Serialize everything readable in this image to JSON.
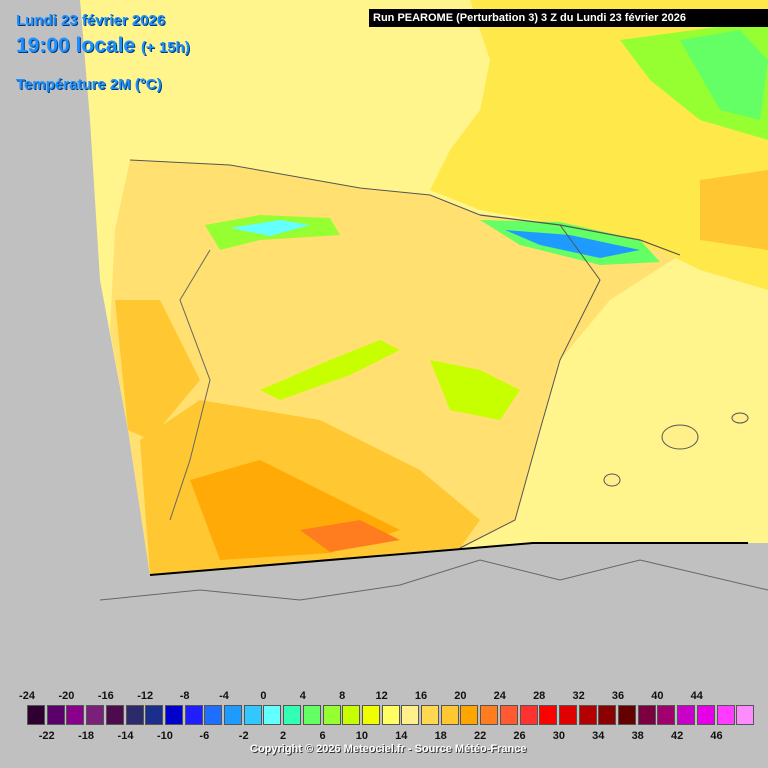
{
  "header": {
    "date": "Lundi 23 février 2026",
    "time": "19:00 locale",
    "offset": "(+ 15h)",
    "parameter": "Température 2M (°C)",
    "run": "Run PEAROME (Perturbation 3) 3 Z du Lundi 23 février 2026"
  },
  "legend": {
    "top_labels": [
      "-24",
      "-20",
      "-16",
      "-12",
      "-8",
      "-4",
      "0",
      "4",
      "8",
      "12",
      "16",
      "20",
      "24",
      "28",
      "32",
      "36",
      "40",
      "44"
    ],
    "bottom_labels": [
      "-22",
      "-18",
      "-14",
      "-10",
      "-6",
      "-2",
      "2",
      "6",
      "10",
      "14",
      "18",
      "22",
      "26",
      "30",
      "34",
      "38",
      "42",
      "46"
    ],
    "colors": [
      "#2d0030",
      "#5a006a",
      "#8b008b",
      "#7a1f7a",
      "#4d0a4d",
      "#2b2b6b",
      "#1a2e8c",
      "#0000cd",
      "#1e1eff",
      "#1e6eff",
      "#1e9bff",
      "#32c8ff",
      "#64ffff",
      "#32ffb4",
      "#64ff64",
      "#96ff32",
      "#c8ff00",
      "#f0ff00",
      "#ffff64",
      "#fff08c",
      "#ffd850",
      "#ffc832",
      "#ffa500",
      "#ff7d1e",
      "#ff5a32",
      "#ff3232",
      "#ff0000",
      "#e10000",
      "#b40000",
      "#8c0000",
      "#640000",
      "#7a0040",
      "#a0006e",
      "#c800c8",
      "#e600e6",
      "#ff3cff",
      "#ff8cff"
    ]
  },
  "copyright": "Copyright © 2026 Meteociel.fr - Source Météo-France",
  "colors": {
    "sea": "#fff58c",
    "land_mid": "#ffdc50",
    "warm": "#ffa500",
    "cold": "#64ffff",
    "outside": "#c0c0c0"
  }
}
